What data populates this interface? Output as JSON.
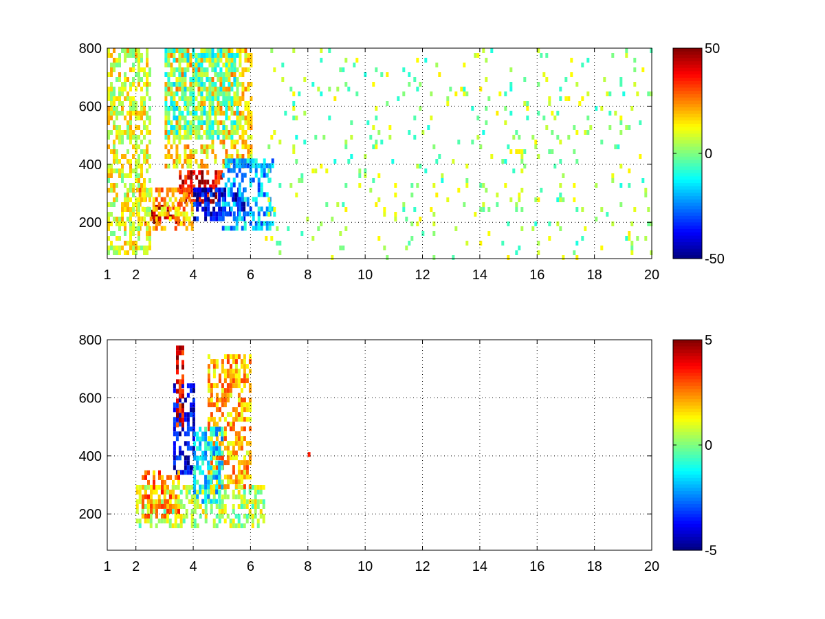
{
  "chart_data": [
    {
      "type": "heatmap",
      "title": "",
      "xlabel": "",
      "ylabel": "",
      "xlim": [
        1,
        20
      ],
      "ylim": [
        75,
        800
      ],
      "x_ticks": [
        "1",
        "2",
        "4",
        "6",
        "8",
        "10",
        "12",
        "14",
        "16",
        "18",
        "20"
      ],
      "x_tick_values": [
        1,
        2,
        4,
        6,
        8,
        10,
        12,
        14,
        16,
        18,
        20
      ],
      "y_ticks": [
        "200",
        "400",
        "600",
        "800"
      ],
      "y_tick_values": [
        200,
        400,
        600,
        800
      ],
      "grid": true,
      "colorbar": {
        "min": -50,
        "max": 50,
        "colormap": "jet",
        "tick_labels": [
          "50",
          "0",
          "-50"
        ]
      },
      "regions": [
        {
          "x": [
            2.5,
            3.5
          ],
          "y": [
            200,
            260
          ],
          "value": 45
        },
        {
          "x": [
            3.5,
            5.0
          ],
          "y": [
            280,
            380
          ],
          "value": 40
        },
        {
          "x": [
            2.0,
            4.0
          ],
          "y": [
            180,
            320
          ],
          "value": 20
        },
        {
          "x": [
            3.0,
            6.0
          ],
          "y": [
            400,
            800
          ],
          "value": 15
        },
        {
          "x": [
            4.0,
            5.8
          ],
          "y": [
            220,
            320
          ],
          "value": -40
        },
        {
          "x": [
            5.0,
            6.8
          ],
          "y": [
            180,
            420
          ],
          "value": -20
        },
        {
          "x": [
            3.0,
            5.5
          ],
          "y": [
            500,
            800
          ],
          "value": -5
        },
        {
          "x": [
            1.0,
            2.5
          ],
          "y": [
            100,
            800
          ],
          "value": 10
        },
        {
          "x": [
            6.5,
            20.0
          ],
          "y": [
            75,
            800
          ],
          "value": 2
        }
      ]
    },
    {
      "type": "heatmap",
      "title": "",
      "xlabel": "",
      "ylabel": "",
      "xlim": [
        1,
        20
      ],
      "ylim": [
        75,
        800
      ],
      "x_ticks": [
        "1",
        "2",
        "4",
        "6",
        "8",
        "10",
        "12",
        "14",
        "16",
        "18",
        "20"
      ],
      "x_tick_values": [
        1,
        2,
        4,
        6,
        8,
        10,
        12,
        14,
        16,
        18,
        20
      ],
      "y_ticks": [
        "200",
        "400",
        "600",
        "800"
      ],
      "y_tick_values": [
        200,
        400,
        600,
        800
      ],
      "grid": true,
      "colorbar": {
        "min": -5,
        "max": 5,
        "colormap": "jet",
        "tick_labels": [
          "5",
          "0",
          "-5"
        ]
      },
      "regions": [
        {
          "x": [
            2.0,
            6.5
          ],
          "y": [
            160,
            300
          ],
          "value": 0.5
        },
        {
          "x": [
            4.5,
            6.0
          ],
          "y": [
            300,
            750
          ],
          "value": 2
        },
        {
          "x": [
            3.3,
            4.0
          ],
          "y": [
            350,
            650
          ],
          "value": -4
        },
        {
          "x": [
            3.4,
            3.6
          ],
          "y": [
            500,
            780
          ],
          "value": 4
        },
        {
          "x": [
            2.2,
            3.5
          ],
          "y": [
            200,
            350
          ],
          "value": 2.5
        },
        {
          "x": [
            4.0,
            5.0
          ],
          "y": [
            250,
            500
          ],
          "value": -1.5
        },
        {
          "x": [
            7.9,
            8.0
          ],
          "y": [
            400,
            430
          ],
          "value": 4
        }
      ]
    }
  ]
}
